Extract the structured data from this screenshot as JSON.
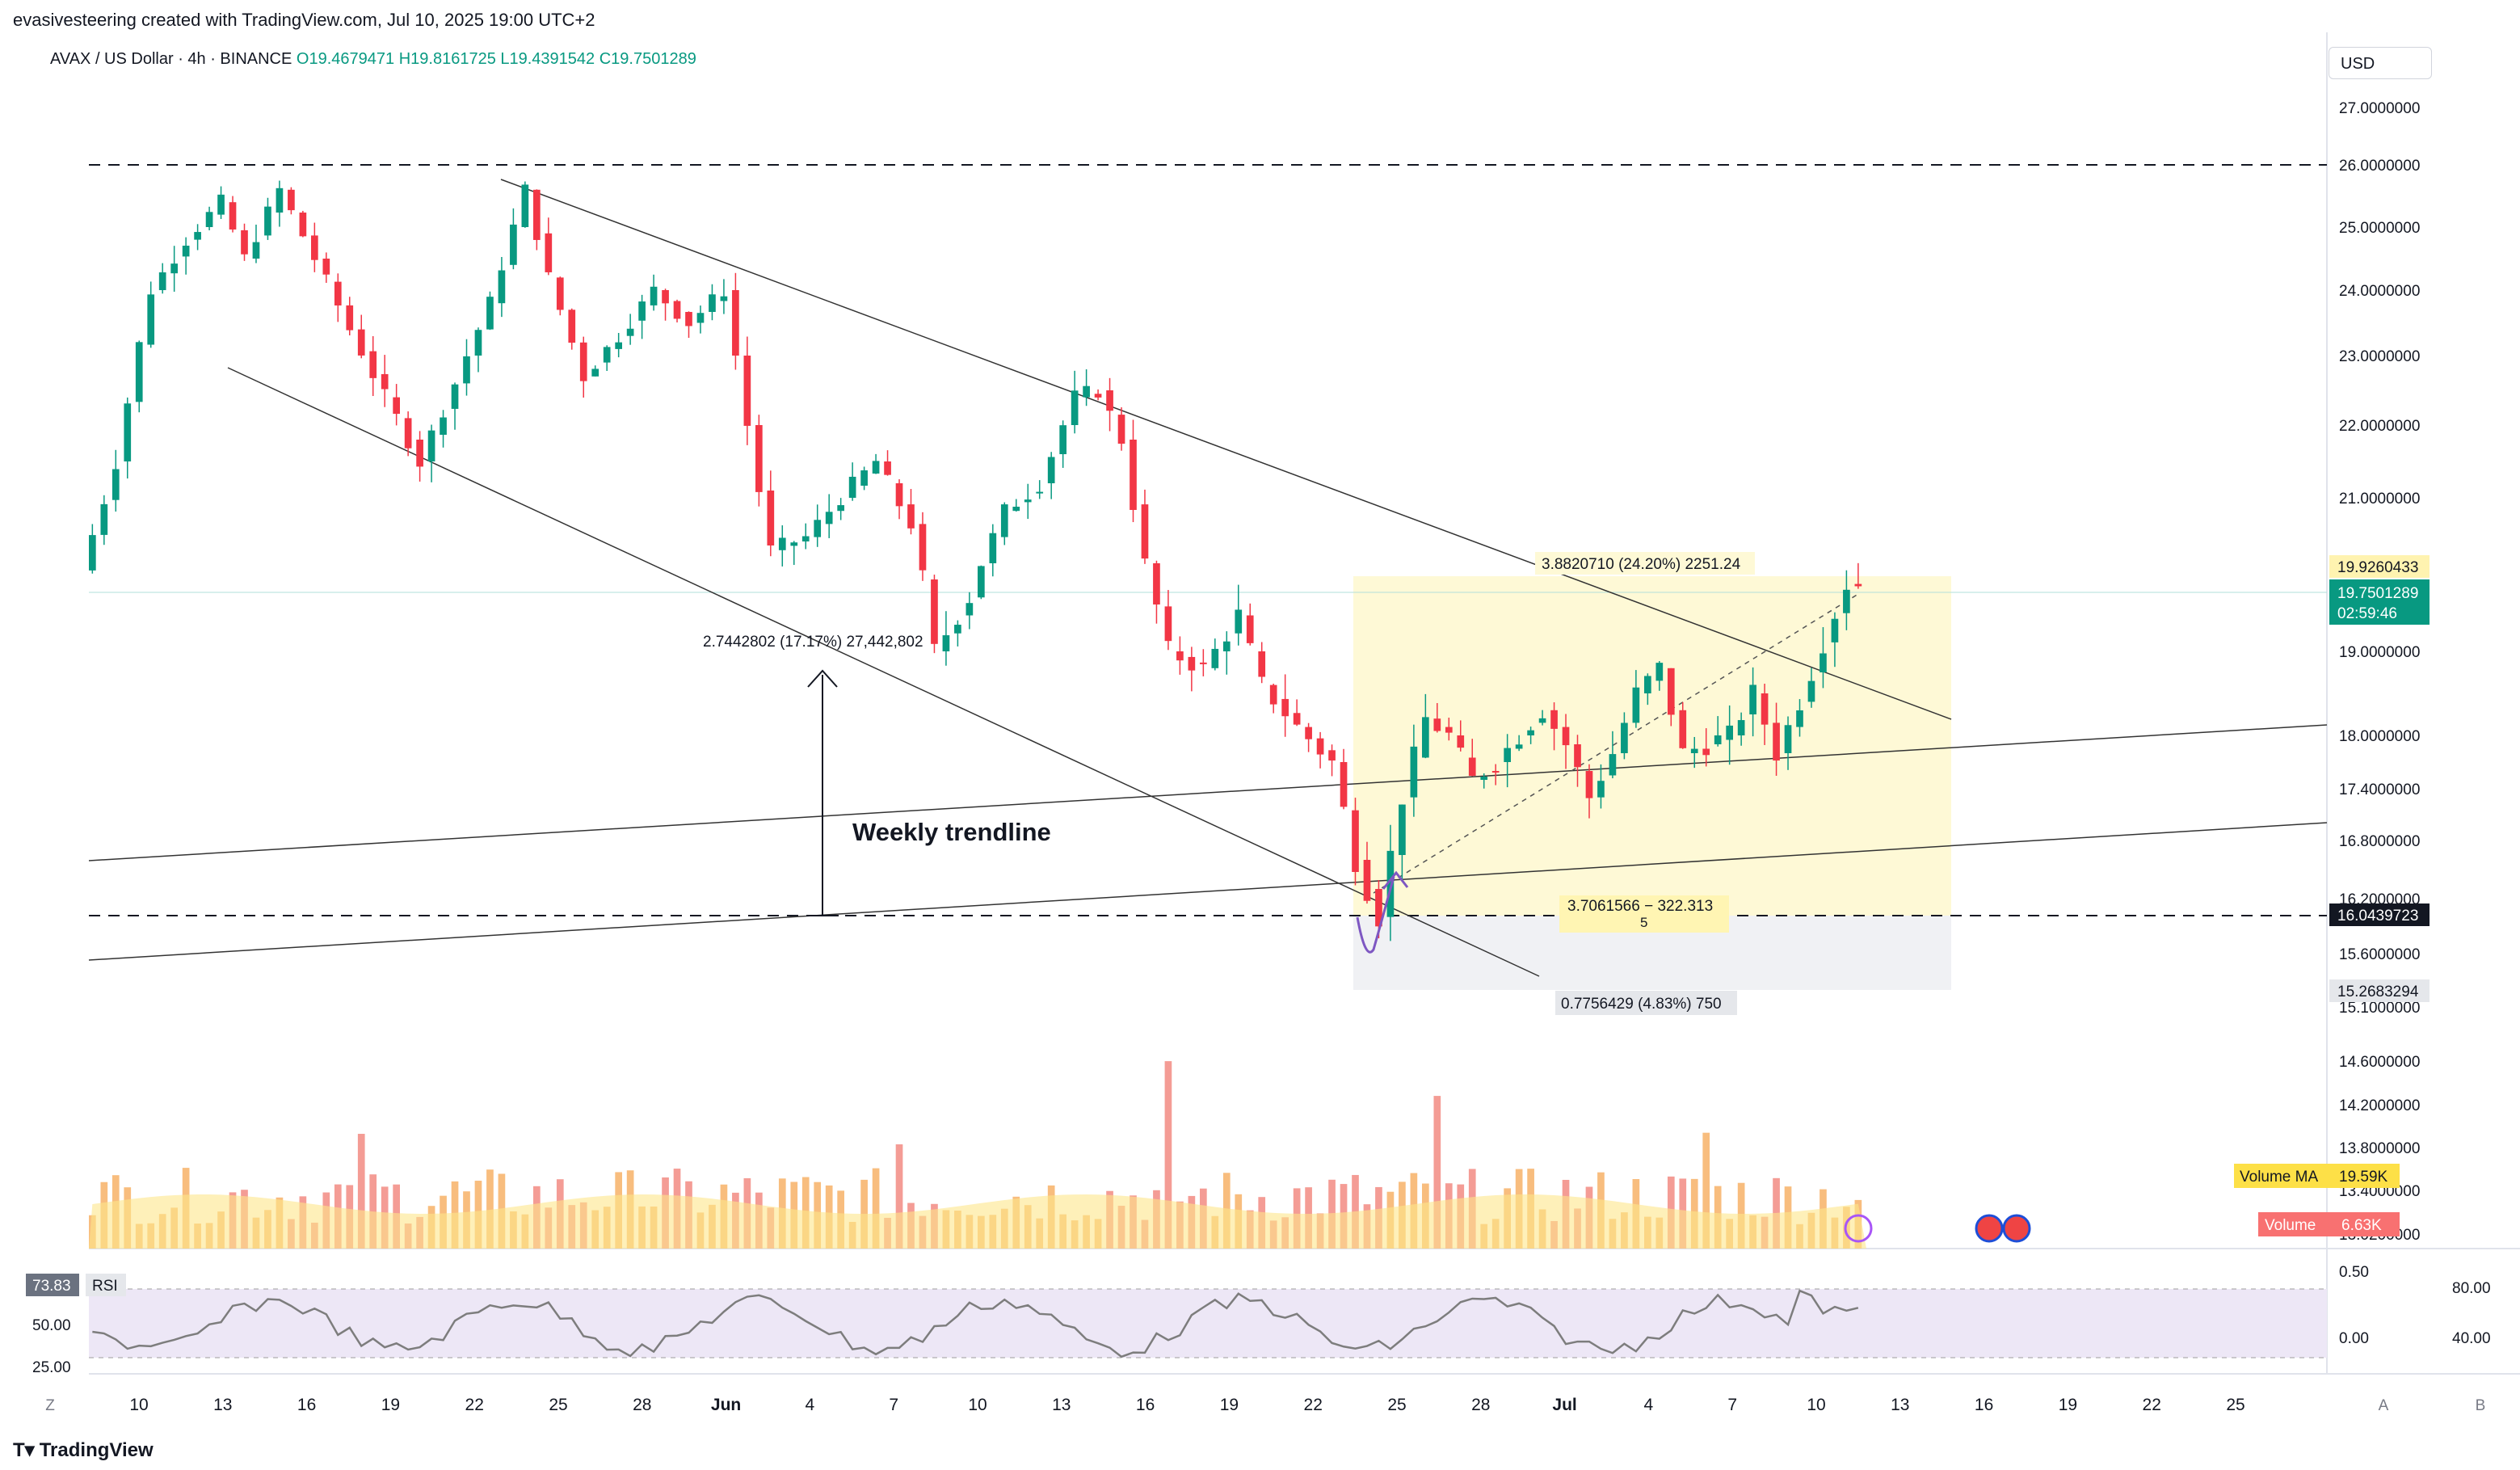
{
  "header": {
    "credit": "evasivesteering created with TradingView.com, Jul 10, 2025 19:00 UTC+2",
    "symbol": "AVAX / US Dollar · 4h · BINANCE",
    "ohlc": {
      "o": "O19.4679471",
      "h": "H19.8161725",
      "l": "L19.4391542",
      "c": "C19.7501289"
    }
  },
  "currency_label": "USD",
  "brand": "TradingView",
  "chart_data": {
    "type": "candlestick",
    "title": "AVAX / US Dollar · 4h · BINANCE",
    "x_ticks": [
      "10",
      "13",
      "16",
      "19",
      "22",
      "25",
      "28",
      "Jun",
      "4",
      "7",
      "10",
      "13",
      "16",
      "19",
      "22",
      "25",
      "28",
      "Jul",
      "4",
      "7",
      "10",
      "13",
      "16",
      "19",
      "22",
      "25"
    ],
    "y_ticks": [
      "27.0000000",
      "26.0000000",
      "25.0000000",
      "24.0000000",
      "23.0000000",
      "22.0000000",
      "21.0000000",
      "19.0000000",
      "18.0000000",
      "17.4000000",
      "16.8000000",
      "16.2000000",
      "15.6000000",
      "15.1000000",
      "14.6000000",
      "14.2000000",
      "13.8000000",
      "13.4000000",
      "13.0200000"
    ],
    "y_range": [
      13.0,
      27.6
    ],
    "price_path": [
      [
        0,
        19.9
      ],
      [
        3,
        21.5
      ],
      [
        6,
        24.0
      ],
      [
        9,
        24.8
      ],
      [
        12,
        25.4
      ],
      [
        14,
        24.5
      ],
      [
        17,
        25.6
      ],
      [
        20,
        24.5
      ],
      [
        23,
        23.4
      ],
      [
        26,
        22.4
      ],
      [
        29,
        21.5
      ],
      [
        32,
        22.6
      ],
      [
        35,
        23.8
      ],
      [
        38,
        25.6
      ],
      [
        40,
        24.2
      ],
      [
        43,
        22.7
      ],
      [
        46,
        23.3
      ],
      [
        49,
        24.0
      ],
      [
        52,
        23.5
      ],
      [
        55,
        24.0
      ],
      [
        57,
        22.0
      ],
      [
        59,
        20.2
      ],
      [
        62,
        20.4
      ],
      [
        65,
        21.0
      ],
      [
        68,
        21.5
      ],
      [
        71,
        20.6
      ],
      [
        73,
        19.0
      ],
      [
        76,
        19.6
      ],
      [
        79,
        20.8
      ],
      [
        82,
        21.2
      ],
      [
        85,
        22.4
      ],
      [
        87,
        22.5
      ],
      [
        89,
        21.8
      ],
      [
        91,
        20.0
      ],
      [
        93,
        19.0
      ],
      [
        96,
        18.8
      ],
      [
        99,
        19.4
      ],
      [
        101,
        18.6
      ],
      [
        104,
        18.1
      ],
      [
        107,
        17.7
      ],
      [
        109,
        16.6
      ],
      [
        111,
        16.0
      ],
      [
        113,
        17.3
      ],
      [
        115,
        18.2
      ],
      [
        117,
        18.0
      ],
      [
        119,
        17.5
      ],
      [
        121,
        17.7
      ],
      [
        123,
        18.0
      ],
      [
        125,
        18.3
      ],
      [
        127,
        17.9
      ],
      [
        129,
        17.3
      ],
      [
        131,
        17.8
      ],
      [
        133,
        18.5
      ],
      [
        135,
        18.8
      ],
      [
        137,
        17.8
      ],
      [
        139,
        17.9
      ],
      [
        141,
        18.0
      ],
      [
        143,
        18.5
      ],
      [
        145,
        17.8
      ],
      [
        147,
        18.4
      ],
      [
        149,
        19.1
      ],
      [
        151,
        19.75
      ]
    ],
    "volume_ma": {
      "label": "Volume MA",
      "value": "19.59K"
    },
    "volume": {
      "label": "Volume",
      "value": "6.63K"
    },
    "rsi": {
      "label": "RSI",
      "value": "73.83",
      "left_ticks": [
        "50.00",
        "25.00"
      ],
      "right_ticks": [
        "80.00",
        "40.00"
      ],
      "inner_ticks": [
        "0.50",
        "0.00"
      ]
    },
    "price_labels": {
      "upper_target": "19.9260433",
      "last_price": "19.7501289",
      "countdown": "02:59:46",
      "support": "16.0439723",
      "lower_target": "15.2683294"
    },
    "annotations": {
      "measure_top": "3.8820710 (24.20%) 2251.24",
      "measure_mid": "3.7061566 − 322.313",
      "measure_mid_sub": "5",
      "measure_low": "0.7756429 (4.83%) 750",
      "range_label": "2.7442802 (17.17%) 27,442,802",
      "weekly_trendline": "Weekly trendline"
    },
    "colors": {
      "up": "#089981",
      "down": "#f23645",
      "ma": "#fde68a",
      "zone": "#fef9d6",
      "rsi": "#7e57c2"
    },
    "grid": false,
    "legend": "top-left"
  },
  "bottom_axis_icons": {
    "left": "Z",
    "mid": "A",
    "right": "B"
  }
}
